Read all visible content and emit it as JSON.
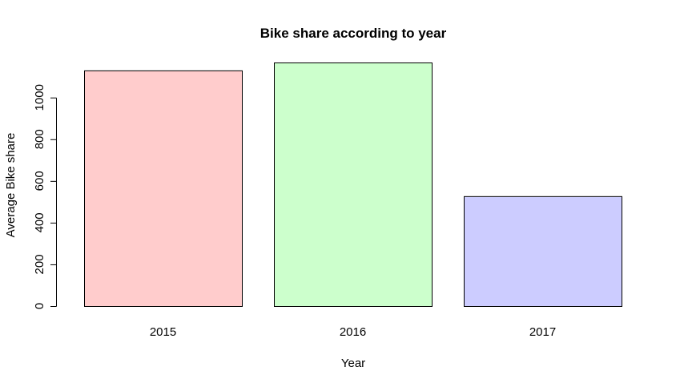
{
  "chart_data": {
    "type": "bar",
    "title": "Bike share according to year",
    "xlabel": "Year",
    "ylabel": "Average Bike share",
    "categories": [
      "2015",
      "2016",
      "2017"
    ],
    "values": [
      1130,
      1168,
      527
    ],
    "ylim": [
      0,
      1168
    ],
    "yticks": [
      "0",
      "200",
      "400",
      "600",
      "800",
      "1000"
    ],
    "colors": [
      "#ffcccc",
      "#ccffcc",
      "#ccccff"
    ],
    "grid": false,
    "legend": "none"
  }
}
